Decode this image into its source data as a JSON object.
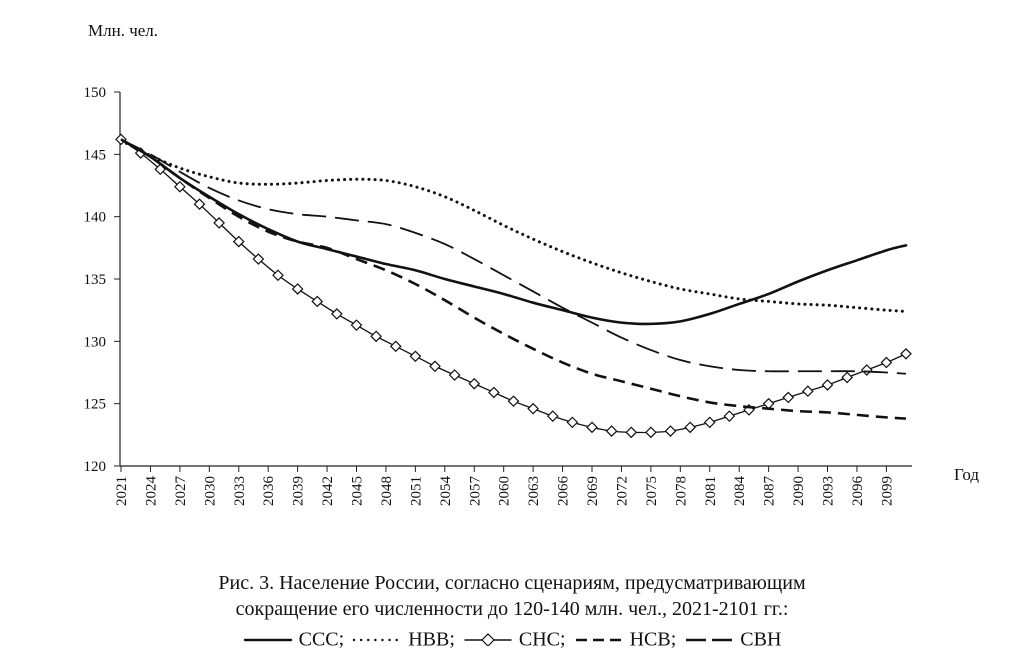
{
  "chart_data": {
    "type": "line",
    "ylabel": "Млн. чел.",
    "xlabel": "Год",
    "ylim": [
      120,
      150
    ],
    "yticks": [
      120,
      125,
      130,
      135,
      140,
      145,
      150
    ],
    "xlim": [
      2021,
      2101
    ],
    "xticks": [
      "2021",
      "2024",
      "2027",
      "2030",
      "2033",
      "2036",
      "2039",
      "2042",
      "2045",
      "2048",
      "2051",
      "2054",
      "2057",
      "2060",
      "2063",
      "2066",
      "2069",
      "2072",
      "2075",
      "2078",
      "2081",
      "2084",
      "2087",
      "2090",
      "2093",
      "2096",
      "2099"
    ],
    "grid": false,
    "series": [
      {
        "name": "ССС",
        "style": "solid",
        "x": [
          2021,
          2024,
          2027,
          2030,
          2033,
          2036,
          2039,
          2042,
          2045,
          2048,
          2051,
          2054,
          2057,
          2060,
          2063,
          2066,
          2069,
          2072,
          2075,
          2078,
          2081,
          2084,
          2087,
          2090,
          2093,
          2096,
          2099,
          2101
        ],
        "y": [
          146.2,
          144.8,
          143.1,
          141.6,
          140.2,
          139.0,
          138.0,
          137.4,
          136.8,
          136.2,
          135.7,
          135.0,
          134.4,
          133.8,
          133.1,
          132.5,
          131.9,
          131.5,
          131.4,
          131.6,
          132.2,
          133.0,
          133.8,
          134.8,
          135.7,
          136.5,
          137.3,
          137.7
        ]
      },
      {
        "name": "НВВ",
        "style": "dotted",
        "x": [
          2021,
          2024,
          2027,
          2030,
          2033,
          2036,
          2039,
          2042,
          2045,
          2048,
          2051,
          2054,
          2057,
          2060,
          2063,
          2066,
          2069,
          2072,
          2075,
          2078,
          2081,
          2084,
          2087,
          2090,
          2093,
          2096,
          2099,
          2101
        ],
        "y": [
          146.1,
          144.9,
          143.9,
          143.2,
          142.7,
          142.6,
          142.7,
          142.9,
          143.0,
          142.9,
          142.4,
          141.6,
          140.5,
          139.3,
          138.2,
          137.2,
          136.3,
          135.5,
          134.8,
          134.2,
          133.8,
          133.4,
          133.2,
          133.0,
          132.9,
          132.7,
          132.5,
          132.4
        ]
      },
      {
        "name": "СНС",
        "style": "diamond",
        "x": [
          2021,
          2023,
          2025,
          2027,
          2029,
          2031,
          2033,
          2035,
          2037,
          2039,
          2041,
          2043,
          2045,
          2047,
          2049,
          2051,
          2053,
          2055,
          2057,
          2059,
          2061,
          2063,
          2065,
          2067,
          2069,
          2071,
          2073,
          2075,
          2077,
          2079,
          2081,
          2083,
          2085,
          2087,
          2089,
          2091,
          2093,
          2095,
          2097,
          2099,
          2101
        ],
        "y": [
          146.2,
          145.1,
          143.8,
          142.4,
          141.0,
          139.5,
          138.0,
          136.6,
          135.3,
          134.2,
          133.2,
          132.2,
          131.3,
          130.4,
          129.6,
          128.8,
          128.0,
          127.3,
          126.6,
          125.9,
          125.2,
          124.6,
          124.0,
          123.5,
          123.1,
          122.8,
          122.7,
          122.7,
          122.8,
          123.1,
          123.5,
          124.0,
          124.5,
          125.0,
          125.5,
          126.0,
          126.5,
          127.1,
          127.7,
          128.3,
          129.0
        ]
      },
      {
        "name": "НСВ",
        "style": "dashed",
        "x": [
          2021,
          2024,
          2027,
          2030,
          2033,
          2036,
          2039,
          2042,
          2045,
          2048,
          2051,
          2054,
          2057,
          2060,
          2063,
          2066,
          2069,
          2072,
          2075,
          2078,
          2081,
          2084,
          2087,
          2090,
          2093,
          2096,
          2099,
          2101
        ],
        "y": [
          146.2,
          144.8,
          143.1,
          141.5,
          140.0,
          138.8,
          138.0,
          137.5,
          136.6,
          135.7,
          134.6,
          133.3,
          131.9,
          130.6,
          129.4,
          128.3,
          127.4,
          126.8,
          126.2,
          125.6,
          125.1,
          124.8,
          124.6,
          124.4,
          124.3,
          124.1,
          123.9,
          123.8
        ]
      },
      {
        "name": "СВН",
        "style": "longdash",
        "x": [
          2021,
          2024,
          2027,
          2030,
          2033,
          2036,
          2039,
          2042,
          2045,
          2048,
          2051,
          2054,
          2057,
          2060,
          2063,
          2066,
          2069,
          2072,
          2075,
          2078,
          2081,
          2084,
          2087,
          2090,
          2093,
          2096,
          2099,
          2101
        ],
        "y": [
          146.2,
          145.0,
          143.6,
          142.3,
          141.3,
          140.6,
          140.2,
          140.0,
          139.7,
          139.4,
          138.7,
          137.8,
          136.6,
          135.3,
          134.0,
          132.7,
          131.5,
          130.3,
          129.3,
          128.5,
          128.0,
          127.7,
          127.6,
          127.6,
          127.6,
          127.6,
          127.5,
          127.4
        ]
      }
    ]
  },
  "caption": {
    "line1": "Рис. 3. Население России, согласно сценариям, предусматривающим",
    "line2": "сокращение его численности до 120-140 млн. чел., 2021-2101 гг.:"
  },
  "legend": [
    {
      "label": "ССС",
      "style": "solid",
      "sep": ";"
    },
    {
      "label": "НВВ",
      "style": "dotted",
      "sep": ";"
    },
    {
      "label": "СНС",
      "style": "diamond",
      "sep": ";"
    },
    {
      "label": "НСВ",
      "style": "dashed",
      "sep": ";"
    },
    {
      "label": "СВН",
      "style": "longdash",
      "sep": ""
    }
  ]
}
